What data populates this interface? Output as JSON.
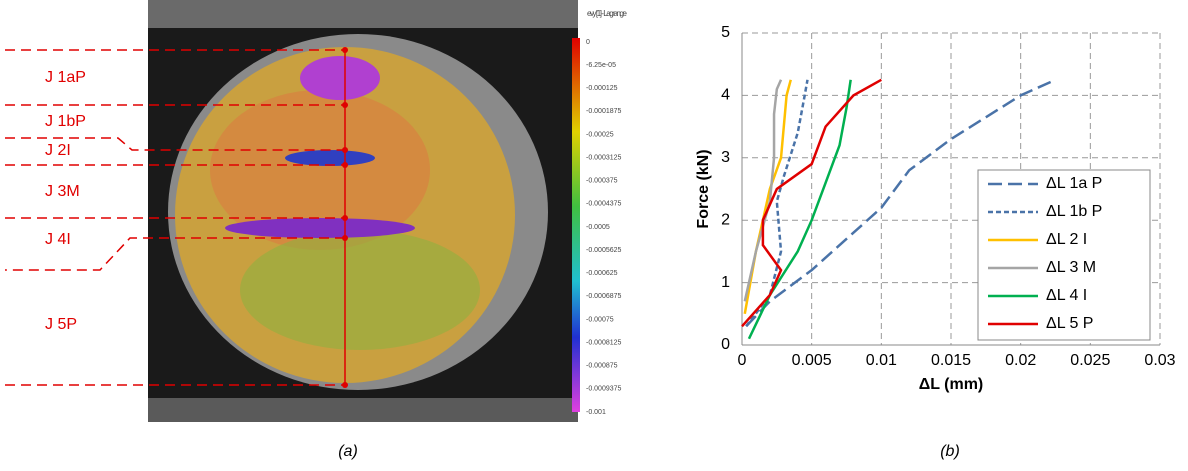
{
  "figure_a": {
    "caption": "(a)",
    "colorbar": {
      "title": "evy [1] - Lagrange",
      "labels": [
        "0",
        "-6.25e-05",
        "-0.000125",
        "-0.0001875",
        "-0.00025",
        "-0.0003125",
        "-0.000375",
        "-0.0004375",
        "-0.0005",
        "-0.0005625",
        "-0.000625",
        "-0.0006875",
        "-0.00075",
        "-0.0008125",
        "-0.000875",
        "-0.0009375",
        "-0.001"
      ]
    },
    "zones": [
      "J 1aP",
      "J 1bP",
      "J 2I",
      "J 3M",
      "J 4I",
      "J 5P"
    ]
  },
  "chart_data": {
    "type": "line",
    "caption": "(b)",
    "x_label": "ΔL (mm)",
    "y_label": "Force (kN)",
    "xlim": [
      0,
      0.03
    ],
    "xticks": [
      0,
      0.005,
      0.01,
      0.015,
      0.02,
      0.025,
      0.03
    ],
    "ylim": [
      0,
      5
    ],
    "yticks": [
      0,
      1,
      2,
      3,
      4,
      5
    ],
    "grid": true,
    "legend": "right",
    "series": [
      {
        "name": "ΔL 1a P",
        "color": "#4a73a8",
        "dash": "long",
        "x": [
          0.0003,
          0.002,
          0.005,
          0.01,
          0.012,
          0.015,
          0.02,
          0.0225
        ],
        "values": [
          0.3,
          0.7,
          1.2,
          2.2,
          2.8,
          3.3,
          4.0,
          4.25
        ]
      },
      {
        "name": "ΔL 1b P",
        "color": "#4a73a8",
        "dash": "short",
        "x": [
          0.0003,
          0.002,
          0.0028,
          0.0025,
          0.003,
          0.004,
          0.0045,
          0.0047
        ],
        "values": [
          0.3,
          0.8,
          1.5,
          2.3,
          2.7,
          3.4,
          4.0,
          4.25
        ]
      },
      {
        "name": "ΔL 2 I",
        "color": "#ffc000",
        "dash": "solid",
        "x": [
          0.0002,
          0.001,
          0.002,
          0.0028,
          0.003,
          0.0032,
          0.0035
        ],
        "values": [
          0.5,
          1.5,
          2.5,
          3.0,
          3.5,
          4.0,
          4.25
        ]
      },
      {
        "name": "ΔL 3 M",
        "color": "#a5a5a5",
        "dash": "solid",
        "x": [
          0.0002,
          0.001,
          0.002,
          0.0023,
          0.0023,
          0.0025,
          0.0028
        ],
        "values": [
          0.7,
          1.5,
          2.3,
          3.0,
          3.7,
          4.1,
          4.25
        ]
      },
      {
        "name": "ΔL 4 I",
        "color": "#00b050",
        "dash": "solid",
        "x": [
          0.0005,
          0.002,
          0.004,
          0.005,
          0.006,
          0.007,
          0.0075,
          0.0078
        ],
        "values": [
          0.1,
          0.8,
          1.5,
          2.0,
          2.6,
          3.2,
          3.8,
          4.25
        ]
      },
      {
        "name": "ΔL 5 P",
        "color": "#e00000",
        "dash": "solid",
        "x": [
          0,
          0.002,
          0.0028,
          0.0015,
          0.0015,
          0.0025,
          0.005,
          0.006,
          0.008,
          0.01
        ],
        "values": [
          0.3,
          0.8,
          1.2,
          1.6,
          2.0,
          2.5,
          2.9,
          3.5,
          4.0,
          4.25
        ]
      }
    ]
  }
}
